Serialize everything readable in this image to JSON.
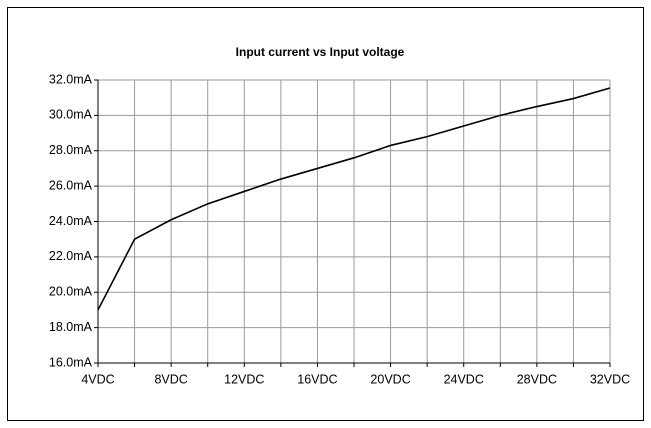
{
  "chart_data": {
    "type": "line",
    "title": "Input current vs Input voltage",
    "x": [
      4,
      6,
      8,
      10,
      12,
      14,
      16,
      18,
      20,
      22,
      24,
      26,
      28,
      30,
      32
    ],
    "series": [
      {
        "color": "#000000",
        "values": [
          19.0,
          23.0,
          24.1,
          25.0,
          25.7,
          26.4,
          27.0,
          27.6,
          28.3,
          28.8,
          29.4,
          30.0,
          30.5,
          30.95,
          31.55
        ]
      }
    ],
    "xlim": [
      4,
      32
    ],
    "xticks": [
      {
        "value": 4,
        "label": "4VDC"
      },
      {
        "value": 6,
        "label": null
      },
      {
        "value": 8,
        "label": "8VDC"
      },
      {
        "value": 10,
        "label": null
      },
      {
        "value": 12,
        "label": "12VDC"
      },
      {
        "value": 14,
        "label": null
      },
      {
        "value": 16,
        "label": "16VDC"
      },
      {
        "value": 18,
        "label": null
      },
      {
        "value": 20,
        "label": "20VDC"
      },
      {
        "value": 22,
        "label": null
      },
      {
        "value": 24,
        "label": "24VDC"
      },
      {
        "value": 26,
        "label": null
      },
      {
        "value": 28,
        "label": "28VDC"
      },
      {
        "value": 30,
        "label": null
      },
      {
        "value": 32,
        "label": "32VDC"
      }
    ],
    "ylim": [
      16,
      32
    ],
    "yticks": [
      {
        "value": 16,
        "label": "16.0mA"
      },
      {
        "value": 18,
        "label": "18.0mA"
      },
      {
        "value": 20,
        "label": "20.0mA"
      },
      {
        "value": 22,
        "label": "22.0mA"
      },
      {
        "value": 24,
        "label": "24.0mA"
      },
      {
        "value": 26,
        "label": "26.0mA"
      },
      {
        "value": 28,
        "label": "28.0mA"
      },
      {
        "value": 30,
        "label": "30.0mA"
      },
      {
        "value": 32,
        "label": "32.0mA"
      }
    ],
    "grid": true
  }
}
